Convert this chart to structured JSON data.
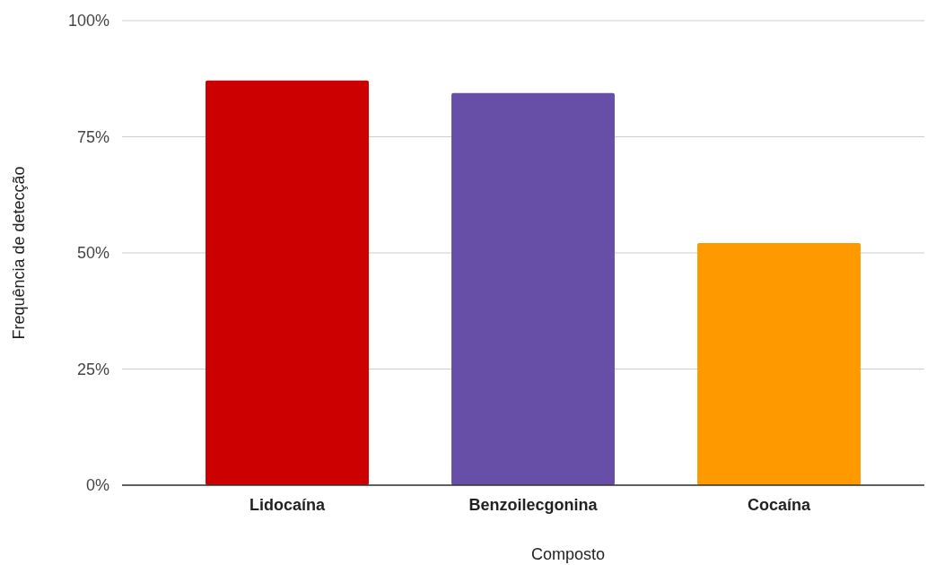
{
  "chart_data": {
    "type": "bar",
    "xlabel": "Composto",
    "ylabel": "Frequência de detecção",
    "categories": [
      "Lidocaína",
      "Benzoilecgonina",
      "Cocaína"
    ],
    "values": [
      87.1,
      84.4,
      52.1
    ],
    "colors": [
      "#cc0000",
      "#674ea7",
      "#ff9900"
    ],
    "ylim": [
      0,
      100
    ],
    "yticks": [
      {
        "value": 0,
        "label": "0%"
      },
      {
        "value": 25,
        "label": "25%"
      },
      {
        "value": 50,
        "label": "50%"
      },
      {
        "value": 75,
        "label": "75%"
      },
      {
        "value": 100,
        "label": "100%"
      }
    ],
    "grid": "y"
  }
}
